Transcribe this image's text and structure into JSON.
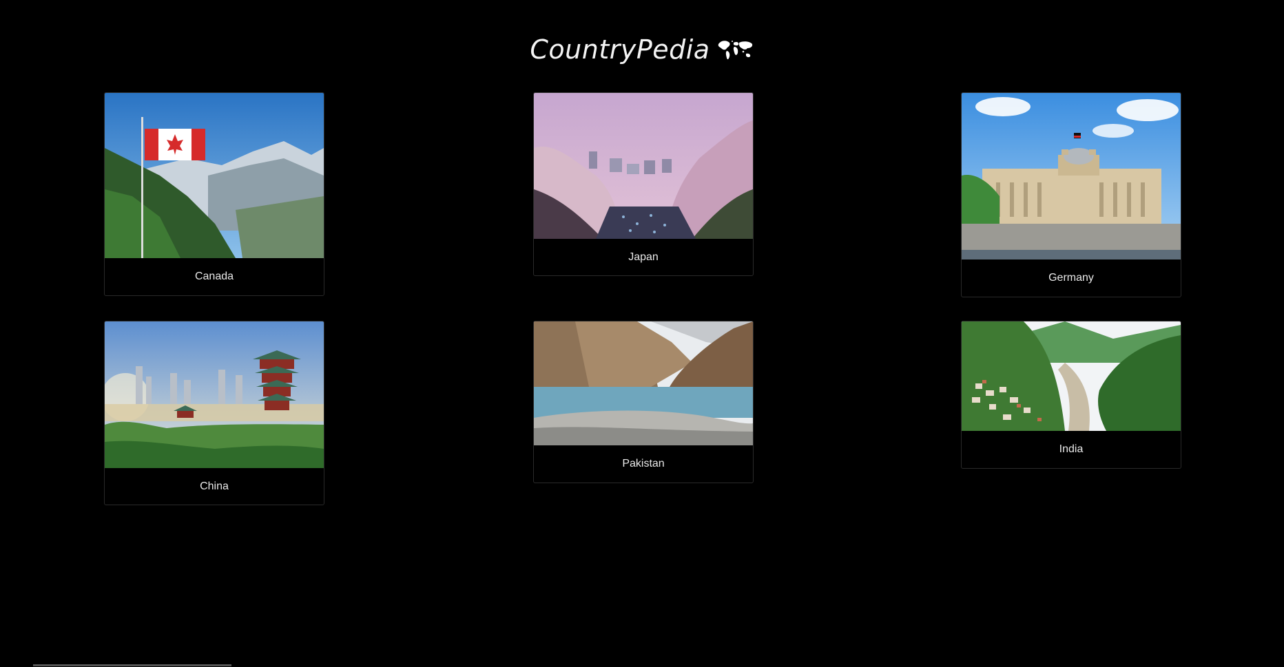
{
  "header": {
    "title": "CountryPedia",
    "icon": "world-map-icon"
  },
  "countries": [
    {
      "name": "Canada",
      "image": "canada-mountains-flag-photo"
    },
    {
      "name": "Japan",
      "image": "japan-cherry-blossom-river-photo"
    },
    {
      "name": "Germany",
      "image": "germany-reichstag-photo"
    },
    {
      "name": "China",
      "image": "china-pagoda-skyline-photo"
    },
    {
      "name": "Pakistan",
      "image": "pakistan-mountain-lake-photo"
    },
    {
      "name": "India",
      "image": "india-valley-river-photo"
    }
  ],
  "colors": {
    "background": "#000000",
    "text": "#ffffff",
    "card_border": "#2a2a2a"
  }
}
